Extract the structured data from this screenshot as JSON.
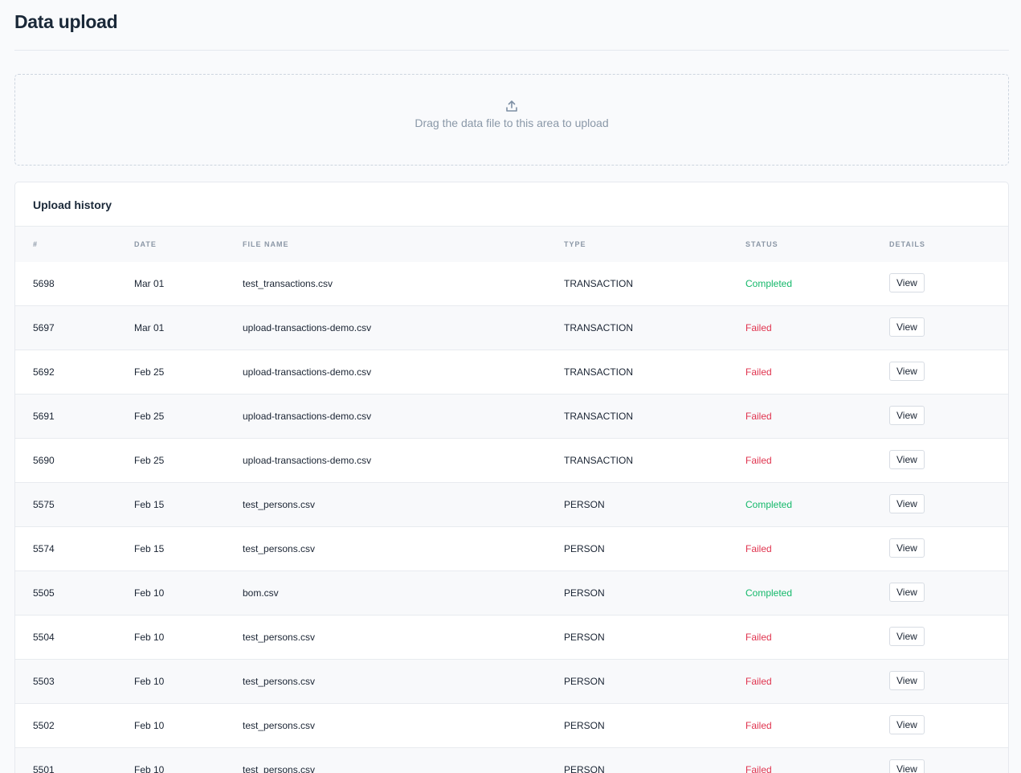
{
  "header": {
    "title": "Data upload"
  },
  "dropzone": {
    "text": "Drag the data file to this area to upload",
    "icon": "upload-icon"
  },
  "history": {
    "title": "Upload history",
    "columns": {
      "id": "#",
      "date": "DATE",
      "file_name": "FILE NAME",
      "type": "TYPE",
      "status": "STATUS",
      "details": "DETAILS"
    },
    "view_label": "View",
    "status_colors": {
      "Completed": "#14b86a",
      "Failed": "#e0344f"
    },
    "rows": [
      {
        "id": "5698",
        "date": "Mar 01",
        "file": "test_transactions.csv",
        "type": "TRANSACTION",
        "status": "Completed"
      },
      {
        "id": "5697",
        "date": "Mar 01",
        "file": "upload-transactions-demo.csv",
        "type": "TRANSACTION",
        "status": "Failed"
      },
      {
        "id": "5692",
        "date": "Feb 25",
        "file": "upload-transactions-demo.csv",
        "type": "TRANSACTION",
        "status": "Failed"
      },
      {
        "id": "5691",
        "date": "Feb 25",
        "file": "upload-transactions-demo.csv",
        "type": "TRANSACTION",
        "status": "Failed"
      },
      {
        "id": "5690",
        "date": "Feb 25",
        "file": "upload-transactions-demo.csv",
        "type": "TRANSACTION",
        "status": "Failed"
      },
      {
        "id": "5575",
        "date": "Feb 15",
        "file": "test_persons.csv",
        "type": "PERSON",
        "status": "Completed"
      },
      {
        "id": "5574",
        "date": "Feb 15",
        "file": "test_persons.csv",
        "type": "PERSON",
        "status": "Failed"
      },
      {
        "id": "5505",
        "date": "Feb 10",
        "file": "bom.csv",
        "type": "PERSON",
        "status": "Completed"
      },
      {
        "id": "5504",
        "date": "Feb 10",
        "file": "test_persons.csv",
        "type": "PERSON",
        "status": "Failed"
      },
      {
        "id": "5503",
        "date": "Feb 10",
        "file": "test_persons.csv",
        "type": "PERSON",
        "status": "Failed"
      },
      {
        "id": "5502",
        "date": "Feb 10",
        "file": "test_persons.csv",
        "type": "PERSON",
        "status": "Failed"
      },
      {
        "id": "5501",
        "date": "Feb 10",
        "file": "test_persons.csv",
        "type": "PERSON",
        "status": "Failed"
      }
    ]
  }
}
